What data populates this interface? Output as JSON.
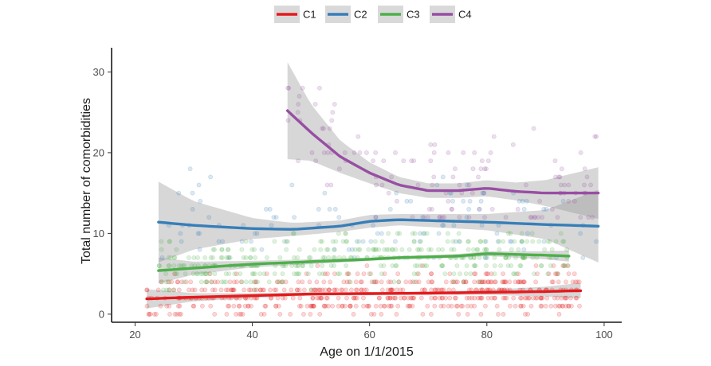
{
  "chart_data": {
    "type": "scatter",
    "title": "",
    "xlabel": "Age on 1/1/2015",
    "ylabel": "Total number of comorbidities",
    "xlim": [
      16,
      103
    ],
    "ylim": [
      -1,
      33
    ],
    "xticks": [
      20,
      40,
      60,
      80,
      100
    ],
    "yticks": [
      0,
      10,
      20,
      30
    ],
    "grid": false,
    "legend_position": "top",
    "smoother": "loess with confidence band",
    "series": [
      {
        "name": "C1",
        "color": "#e41a1c",
        "x_range": [
          22,
          96
        ],
        "point_y_range": [
          0,
          6
        ],
        "trend": [
          [
            22,
            1.9
          ],
          [
            30,
            2.1
          ],
          [
            40,
            2.3
          ],
          [
            50,
            2.5
          ],
          [
            60,
            2.55
          ],
          [
            70,
            2.6
          ],
          [
            80,
            2.7
          ],
          [
            90,
            2.8
          ],
          [
            95,
            2.9
          ]
        ],
        "band_halfwidth": [
          [
            22,
            1.2
          ],
          [
            30,
            0.5
          ],
          [
            40,
            0.3
          ],
          [
            50,
            0.2
          ],
          [
            60,
            0.2
          ],
          [
            70,
            0.2
          ],
          [
            80,
            0.3
          ],
          [
            90,
            0.6
          ],
          [
            95,
            0.9
          ]
        ]
      },
      {
        "name": "C2",
        "color": "#377eb8",
        "x_range": [
          24,
          99
        ],
        "point_y_range": [
          7,
          20
        ],
        "trend": [
          [
            24,
            11.4
          ],
          [
            30,
            11.0
          ],
          [
            40,
            10.6
          ],
          [
            47,
            10.5
          ],
          [
            55,
            10.9
          ],
          [
            60,
            11.5
          ],
          [
            65,
            11.7
          ],
          [
            70,
            11.6
          ],
          [
            80,
            11.4
          ],
          [
            90,
            11.1
          ],
          [
            99,
            10.9
          ]
        ],
        "band_halfwidth": [
          [
            24,
            5.0
          ],
          [
            30,
            3.0
          ],
          [
            40,
            1.3
          ],
          [
            47,
            0.8
          ],
          [
            55,
            0.7
          ],
          [
            60,
            0.8
          ],
          [
            65,
            0.7
          ],
          [
            70,
            0.8
          ],
          [
            80,
            1.0
          ],
          [
            90,
            1.8
          ],
          [
            99,
            4.5
          ]
        ]
      },
      {
        "name": "C3",
        "color": "#4daf4a",
        "x_range": [
          24,
          94
        ],
        "point_y_range": [
          3,
          10
        ],
        "trend": [
          [
            24,
            5.4
          ],
          [
            30,
            5.7
          ],
          [
            40,
            6.2
          ],
          [
            50,
            6.5
          ],
          [
            60,
            6.8
          ],
          [
            65,
            7.0
          ],
          [
            70,
            7.1
          ],
          [
            75,
            7.2
          ],
          [
            80,
            7.5
          ],
          [
            85,
            7.4
          ],
          [
            90,
            7.3
          ],
          [
            94,
            7.2
          ]
        ],
        "band_halfwidth": [
          [
            24,
            1.6
          ],
          [
            30,
            0.8
          ],
          [
            40,
            0.4
          ],
          [
            50,
            0.3
          ],
          [
            60,
            0.2
          ],
          [
            70,
            0.2
          ],
          [
            80,
            0.3
          ],
          [
            90,
            0.5
          ],
          [
            94,
            0.7
          ]
        ]
      },
      {
        "name": "C4",
        "color": "#984ea3",
        "x_range": [
          46,
          99
        ],
        "point_y_range": [
          12,
          28
        ],
        "trend": [
          [
            46,
            25.2
          ],
          [
            50,
            22.5
          ],
          [
            55,
            19.5
          ],
          [
            60,
            17.5
          ],
          [
            65,
            16.0
          ],
          [
            70,
            15.3
          ],
          [
            75,
            15.3
          ],
          [
            80,
            15.6
          ],
          [
            85,
            15.2
          ],
          [
            90,
            15.0
          ],
          [
            99,
            15.0
          ]
        ],
        "band_halfwidth": [
          [
            46,
            6.0
          ],
          [
            50,
            3.5
          ],
          [
            55,
            2.0
          ],
          [
            60,
            1.3
          ],
          [
            65,
            1.0
          ],
          [
            70,
            0.9
          ],
          [
            75,
            0.9
          ],
          [
            80,
            1.0
          ],
          [
            85,
            1.1
          ],
          [
            90,
            1.6
          ],
          [
            99,
            3.2
          ]
        ]
      }
    ]
  }
}
